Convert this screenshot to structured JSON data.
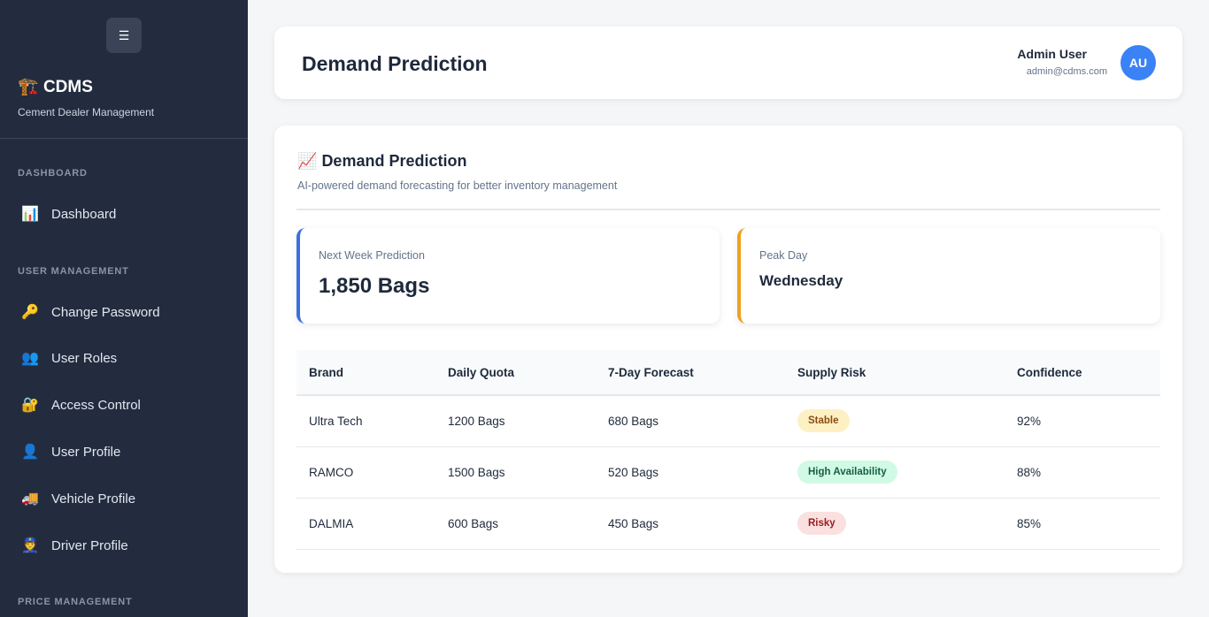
{
  "sidebar": {
    "menu_icon": "☰",
    "brand_icon": "🏗️",
    "brand": "CDMS",
    "subtitle": "Cement Dealer Management",
    "sections": [
      "DASHBOARD",
      "USER MANAGEMENT",
      "PRICE MANAGEMENT"
    ],
    "items": [
      {
        "icon": "📊",
        "label": "Dashboard"
      },
      {
        "icon": "🔑",
        "label": "Change Password"
      },
      {
        "icon": "👥",
        "label": "User Roles"
      },
      {
        "icon": "🔐",
        "label": "Access Control"
      },
      {
        "icon": "👤",
        "label": "User Profile"
      },
      {
        "icon": "🚚",
        "label": "Vehicle Profile"
      },
      {
        "icon": "👮",
        "label": "Driver Profile"
      }
    ]
  },
  "header": {
    "title": "Demand Prediction",
    "user_name": "Admin User",
    "user_email": "admin@cdms.com",
    "avatar": "AU"
  },
  "card": {
    "icon": "📈",
    "title": "Demand Prediction",
    "subtitle": "AI-powered demand forecasting for better inventory management",
    "stats": [
      {
        "label": "Next Week Prediction",
        "value": "1,850 Bags",
        "color": "#3b6fe0"
      },
      {
        "label": "Peak Day",
        "value": "Wednesday",
        "color": "#f0a020"
      }
    ],
    "table": {
      "headers": [
        "Brand",
        "Daily Quota",
        "7-Day Forecast",
        "Supply Risk",
        "Confidence"
      ],
      "rows": [
        [
          "Ultra Tech",
          "1200 Bags",
          "680 Bags",
          "Stable",
          "92%"
        ],
        [
          "RAMCO",
          "1500 Bags",
          "520 Bags",
          "High Availability",
          "88%"
        ],
        [
          "DALMIA",
          "600 Bags",
          "450 Bags",
          "Risky",
          "85%"
        ]
      ]
    }
  },
  "badge_colors": {
    "Stable": {
      "bg": "#fdf1c4",
      "fg": "#8a4b0f"
    },
    "High Availability": {
      "bg": "#d1fae5",
      "fg": "#166045"
    },
    "Risky": {
      "bg": "#fbe0e0",
      "fg": "#9b1c1c"
    }
  }
}
